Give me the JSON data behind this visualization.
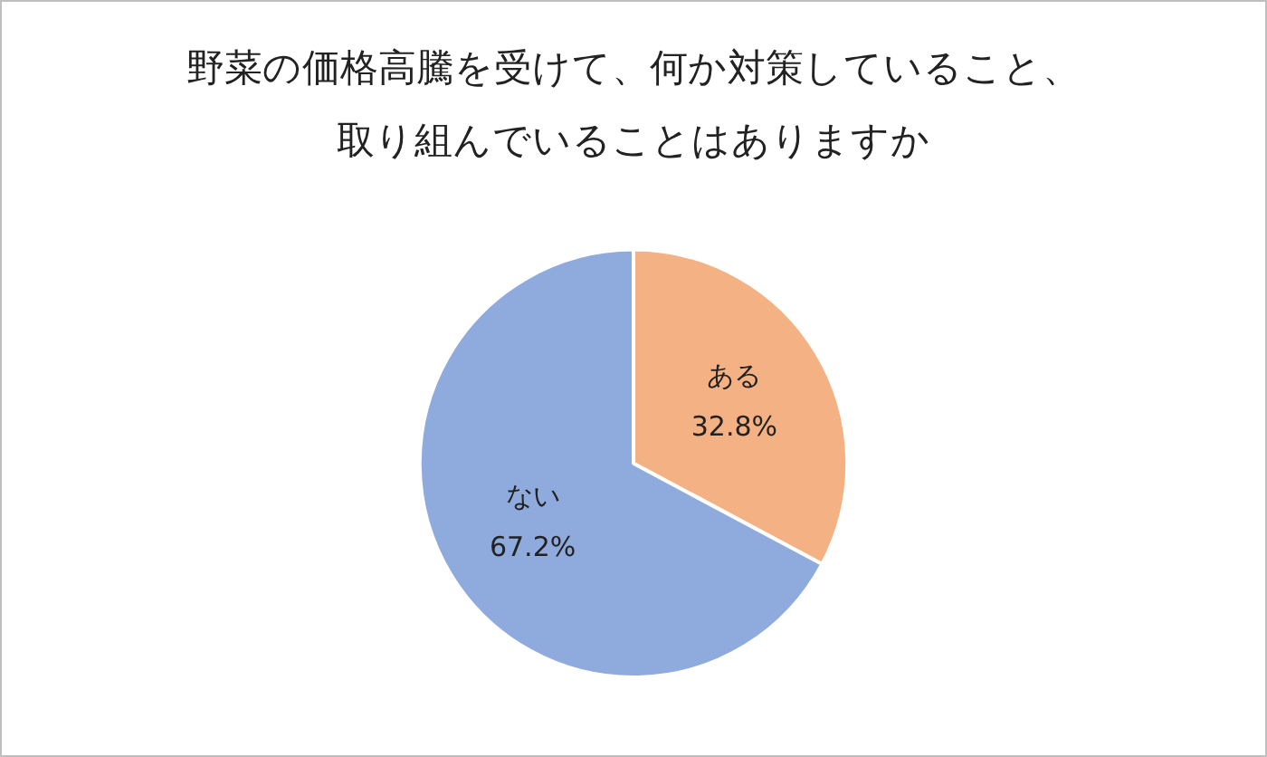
{
  "chart_data": {
    "type": "pie",
    "title": "野菜の価格高騰を受けて、何か対策していること、取り組んでいることはありますか",
    "categories": [
      "ある",
      "ない"
    ],
    "values": [
      32.8,
      67.2
    ],
    "value_labels": [
      "32.8%",
      "67.2%"
    ],
    "colors": [
      "#f4b183",
      "#8faadc"
    ],
    "legend": false
  }
}
